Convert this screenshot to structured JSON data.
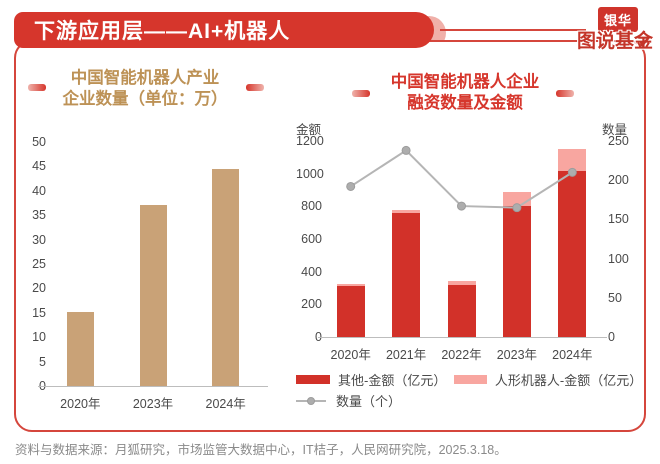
{
  "header": {
    "title": "下游应用层——AI+机器人"
  },
  "logo": {
    "line1": "银华",
    "line2": "图说基金",
    "checkmark": "✔"
  },
  "source_note": "资料与数据来源：月狐研究，市场监管大数据中心，IT桔子，人民网研究院，2025.3.18。",
  "colors": {
    "brand_red": "#d6362c",
    "panel_border": "#d5463c",
    "title_gold": "#bd9256",
    "bar_tan": "#c9a277",
    "bar_red": "#d23129",
    "bar_pink": "#f8a6a0",
    "line_gray": "#b5b5b5",
    "tick_text": "#4a4a4a",
    "muted_text": "#8a8a8a"
  },
  "chart_data": [
    {
      "type": "bar",
      "title_lines": [
        "中国智能机器人产业",
        "企业数量（单位：万）"
      ],
      "categories": [
        "2020年",
        "2023年",
        "2024年"
      ],
      "values": [
        15.2,
        37,
        44.4
      ],
      "ylim": [
        0,
        50
      ],
      "yticks": [
        0,
        5,
        10,
        15,
        20,
        25,
        30,
        35,
        40,
        45,
        50
      ],
      "bar_color": "#c9a277",
      "grid": false,
      "legend_position": "none"
    },
    {
      "type": "bar+line",
      "title_lines": [
        "中国智能机器人企业",
        "融资数量及金额"
      ],
      "categories": [
        "2020年",
        "2021年",
        "2022年",
        "2023年",
        "2024年"
      ],
      "left_axis": {
        "label": "金额",
        "lim": [
          0,
          1200
        ],
        "ticks": [
          0,
          200,
          400,
          600,
          800,
          1000,
          1200
        ]
      },
      "right_axis": {
        "label": "数量",
        "lim": [
          0,
          250
        ],
        "ticks": [
          0,
          50,
          100,
          150,
          200,
          250
        ]
      },
      "series": [
        {
          "name": "其他-金额（亿元）",
          "type": "bar",
          "stack": true,
          "axis": "left",
          "values": [
            315,
            760,
            320,
            800,
            1015
          ],
          "color": "#d23129"
        },
        {
          "name": "人形机器人-金额（亿元）",
          "type": "bar",
          "stack": true,
          "axis": "left",
          "values": [
            10,
            15,
            25,
            90,
            135
          ],
          "color": "#f8a6a0"
        },
        {
          "name": "数量（个）",
          "type": "line",
          "axis": "right",
          "values": [
            192,
            238,
            167,
            165,
            210
          ],
          "color": "#b5b5b5"
        }
      ],
      "grid": false,
      "legend_position": "bottom"
    }
  ]
}
